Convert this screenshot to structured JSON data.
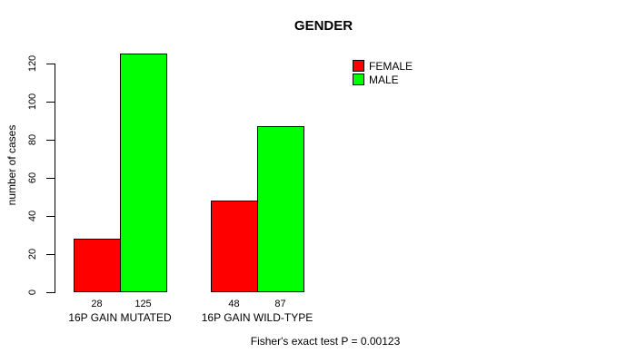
{
  "chart_data": {
    "type": "bar",
    "title": "GENDER",
    "xlabel": "",
    "ylabel": "number of cases",
    "categories": [
      "16P GAIN MUTATED",
      "16P GAIN WILD-TYPE"
    ],
    "series": [
      {
        "name": "FEMALE",
        "color": "#ff0000",
        "values": [
          28,
          48
        ]
      },
      {
        "name": "MALE",
        "color": "#00ff00",
        "values": [
          125,
          87
        ]
      }
    ],
    "bar_value_labels": [
      [
        "28",
        "48"
      ],
      [
        "125",
        "87"
      ]
    ],
    "yticks": [
      0,
      20,
      40,
      60,
      80,
      100,
      120
    ],
    "ylim": [
      0,
      125
    ],
    "grid": false,
    "legend_position": "top-right",
    "legend_entries": [
      "FEMALE",
      "MALE"
    ],
    "annotation": "Fisher's exact test P = 0.00123",
    "bar_border_color": "#000000",
    "background_color": "#ffffff",
    "text_color": "#000000"
  }
}
